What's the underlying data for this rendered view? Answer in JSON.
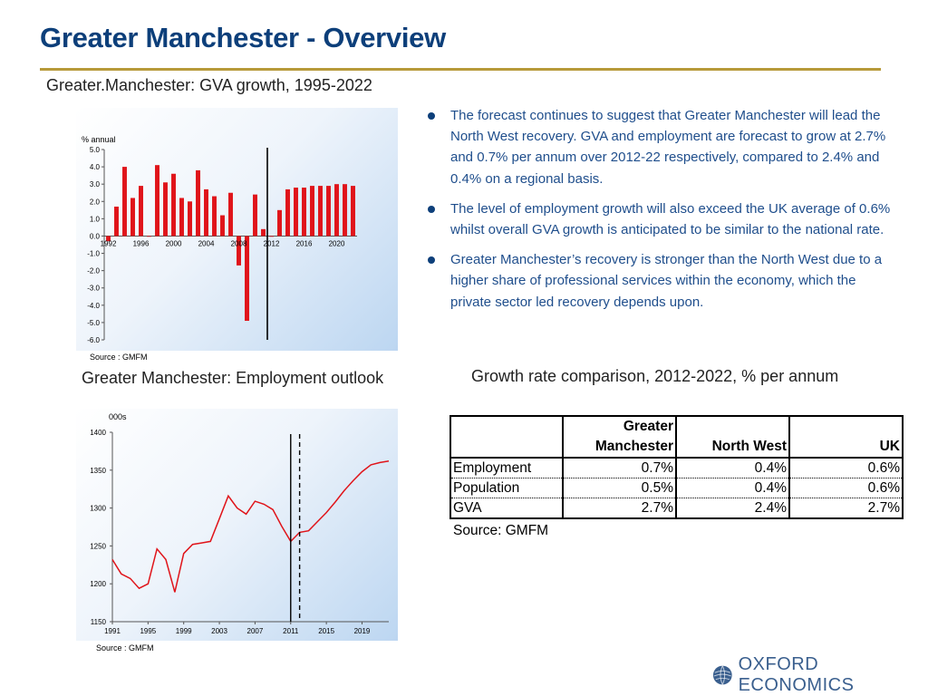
{
  "page": {
    "title": "Greater Manchester - Overview",
    "logo_text": "OXFORD ECONOMICS",
    "accent_color": "#0d3f7a",
    "rule_color": "#b79a3a"
  },
  "gva_section": {
    "title": "Greater.Manchester: GVA growth, 1995-2022",
    "source": "Source : GMFM"
  },
  "employment_section": {
    "title": "Greater Manchester: Employment outlook",
    "source": "Source : GMFM"
  },
  "bullets": [
    "The forecast continues to suggest that Greater Manchester will lead the North West recovery. GVA and employment are forecast to grow at 2.7% and 0.7% per annum over 2012-22 respectively, compared to 2.4% and 0.4% on a regional basis.",
    "The level of employment growth will also exceed the UK average of 0.6% whilst overall GVA growth is anticipated to be similar to the national rate.",
    "Greater Manchester’s recovery is stronger than the North West due to a higher share of professional services within the economy, which the private sector led recovery depends upon."
  ],
  "comparison": {
    "title": "Growth rate comparison, 2012-2022, % per annum",
    "columns": [
      "Greater Manchester",
      "North West",
      "UK"
    ],
    "column_lines": [
      [
        "Greater",
        "Manchester"
      ],
      [
        "North West"
      ],
      [
        "UK"
      ]
    ],
    "rows": [
      {
        "label": "Employment",
        "values": [
          "0.7%",
          "0.4%",
          "0.6%"
        ]
      },
      {
        "label": "Population",
        "values": [
          "0.5%",
          "0.4%",
          "0.6%"
        ]
      },
      {
        "label": "GVA",
        "values": [
          "2.7%",
          "2.4%",
          "2.7%"
        ]
      }
    ],
    "source": "Source: GMFM"
  },
  "chart_data": [
    {
      "type": "bar",
      "title": "Greater.Manchester: GVA growth, 1995-2022",
      "ylabel": "% annual",
      "ylim": [
        -6.0,
        5.0
      ],
      "yticks": [
        "5.0",
        "4.0",
        "3.0",
        "2.0",
        "1.0",
        "0.0",
        "-1.0",
        "-2.0",
        "-3.0",
        "-4.0",
        "-5.0",
        "-6.0"
      ],
      "xticks": [
        "1992",
        "1996",
        "2000",
        "2004",
        "2008",
        "2012",
        "2016",
        "2020"
      ],
      "categories": [
        1992,
        1993,
        1994,
        1995,
        1996,
        1997,
        1998,
        1999,
        2000,
        2001,
        2002,
        2003,
        2004,
        2005,
        2006,
        2007,
        2008,
        2009,
        2010,
        2011,
        2012,
        2013,
        2014,
        2015,
        2016,
        2017,
        2018,
        2019,
        2020,
        2021,
        2022
      ],
      "values": [
        -0.3,
        1.7,
        4.0,
        2.2,
        2.9,
        0.0,
        4.1,
        3.1,
        3.6,
        2.2,
        2.0,
        3.8,
        2.7,
        2.3,
        1.2,
        2.5,
        -1.7,
        -4.9,
        2.4,
        0.4,
        0.0,
        1.5,
        2.7,
        2.8,
        2.8,
        2.9,
        2.9,
        2.9,
        3.0,
        3.0,
        2.9
      ],
      "forecast_marker_x": 2011.5,
      "bar_color": "#e0141a",
      "grid": false
    },
    {
      "type": "line",
      "title": "Greater Manchester: Employment outlook",
      "ylabel": "000s",
      "ylim": [
        1150,
        1400
      ],
      "yticks": [
        "1400",
        "1350",
        "1300",
        "1250",
        "1200",
        "1150"
      ],
      "xticks": [
        "1991",
        "1995",
        "1999",
        "2003",
        "2007",
        "2011",
        "2015",
        "2019"
      ],
      "x": [
        1991,
        1992,
        1993,
        1994,
        1995,
        1996,
        1997,
        1998,
        1999,
        2000,
        2001,
        2002,
        2003,
        2004,
        2005,
        2006,
        2007,
        2008,
        2009,
        2010,
        2011,
        2012,
        2013,
        2014,
        2015,
        2016,
        2017,
        2018,
        2019,
        2020,
        2021,
        2022
      ],
      "series": [
        {
          "values": [
            1232,
            1213,
            1207,
            1194,
            1200,
            1246,
            1232,
            1189,
            1240,
            1252,
            1254,
            1256,
            1286,
            1316,
            1300,
            1292,
            1309,
            1305,
            1298,
            1276,
            1256,
            1268,
            1270,
            1282,
            1294,
            1308,
            1323,
            1336,
            1348,
            1357,
            1360,
            1362
          ]
        }
      ],
      "marker_solid_x": 2011,
      "marker_dashed_x": 2012,
      "line_color": "#e0141a",
      "grid": false
    }
  ]
}
